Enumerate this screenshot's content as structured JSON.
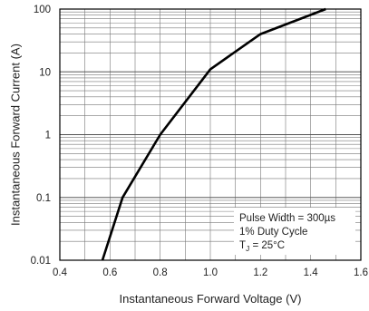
{
  "chart_data": {
    "type": "line",
    "title": "",
    "xlabel": "Instantaneous Forward Voltage (V)",
    "ylabel": "Instantaneous Forward Current (A)",
    "x_scale": "linear",
    "y_scale": "log",
    "xlim": [
      0.4,
      1.6
    ],
    "ylim": [
      0.01,
      100
    ],
    "x_ticks": [
      "0.4",
      "0.6",
      "0.8",
      "1.0",
      "1.2",
      "1.4",
      "1.6"
    ],
    "y_ticks": [
      "0.01",
      "0.1",
      "1",
      "10",
      "100"
    ],
    "grid": true,
    "series": [
      {
        "x": [
          0.57,
          0.65,
          0.8,
          1.0,
          1.2,
          1.46
        ],
        "y": [
          0.01,
          0.1,
          1,
          11,
          40,
          100
        ]
      }
    ],
    "annotations": {
      "line1": "Pulse Width = 300µs",
      "line2": "1% Duty Cycle",
      "line3_prefix": "T",
      "line3_sub": "J",
      "line3_suffix": " = 25°C"
    },
    "colors": {
      "line": "#000000",
      "grid": "#777777",
      "text": "#222222"
    }
  }
}
